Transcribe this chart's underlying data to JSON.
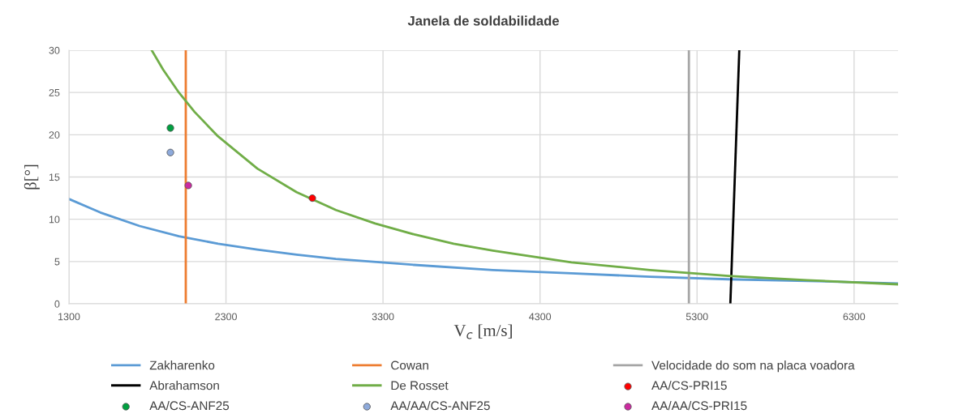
{
  "chart_data": {
    "type": "line",
    "title": "Janela de soldabilidade",
    "xlabel": "V$_{c}$ [m/s]",
    "ylabel": "β[°]",
    "xlim": [
      1300,
      6580
    ],
    "ylim": [
      0,
      30
    ],
    "xticks": [
      1300,
      2300,
      3300,
      4300,
      5300,
      6300
    ],
    "yticks": [
      0,
      5,
      10,
      15,
      20,
      25,
      30
    ],
    "grid": true,
    "legend": "bottom",
    "line_style": "solid",
    "series": [
      {
        "name": "Zakharenko",
        "color": "#5b9bd5",
        "x": [
          1300,
          1500,
          1750,
          2000,
          2250,
          2500,
          2750,
          3000,
          3500,
          4000,
          4500,
          5000,
          5500,
          6000,
          6580
        ],
        "values": [
          12.4,
          10.8,
          9.2,
          8.0,
          7.1,
          6.4,
          5.8,
          5.3,
          4.6,
          4.0,
          3.6,
          3.2,
          2.9,
          2.7,
          2.4
        ]
      },
      {
        "name": "Cowan",
        "color": "#ed7d31",
        "x": [
          2044,
          2044
        ],
        "values": [
          0,
          30
        ]
      },
      {
        "name": "Velocidade do som na placa voadora",
        "color": "#a5a5a5",
        "x": [
          5248,
          5248
        ],
        "values": [
          0,
          30
        ]
      },
      {
        "name": "Abrahamson",
        "color": "#000000",
        "x": [
          5512,
          5569
        ],
        "values": [
          0,
          30
        ]
      },
      {
        "name": "De Rosset",
        "color": "#70ad47",
        "x": [
          1827,
          1900,
          2000,
          2100,
          2250,
          2500,
          2750,
          3000,
          3250,
          3500,
          3750,
          4000,
          4500,
          5000,
          5500,
          6000,
          6580
        ],
        "values": [
          30,
          27.7,
          25,
          22.7,
          19.8,
          16,
          13.2,
          11.1,
          9.5,
          8.2,
          7.1,
          6.3,
          4.9,
          4.0,
          3.3,
          2.8,
          2.3
        ]
      },
      {
        "name": "AA/CS-PRI15",
        "type": "scatter",
        "marker": "circle",
        "color": "#ff0000",
        "x": [
          2850
        ],
        "values": [
          12.5
        ]
      },
      {
        "name": "AA/CS-ANF25",
        "type": "scatter",
        "marker": "circle",
        "color": "#00a040",
        "x": [
          1946
        ],
        "values": [
          20.8
        ]
      },
      {
        "name": "AA/AA/CS-ANF25",
        "type": "scatter",
        "marker": "circle",
        "color": "#8eaadb",
        "x": [
          1946
        ],
        "values": [
          17.9
        ]
      },
      {
        "name": "AA/AA/CS-PRI15",
        "type": "scatter",
        "marker": "circle",
        "color": "#cc2aa0",
        "x": [
          2060
        ],
        "values": [
          14.0
        ]
      }
    ]
  }
}
